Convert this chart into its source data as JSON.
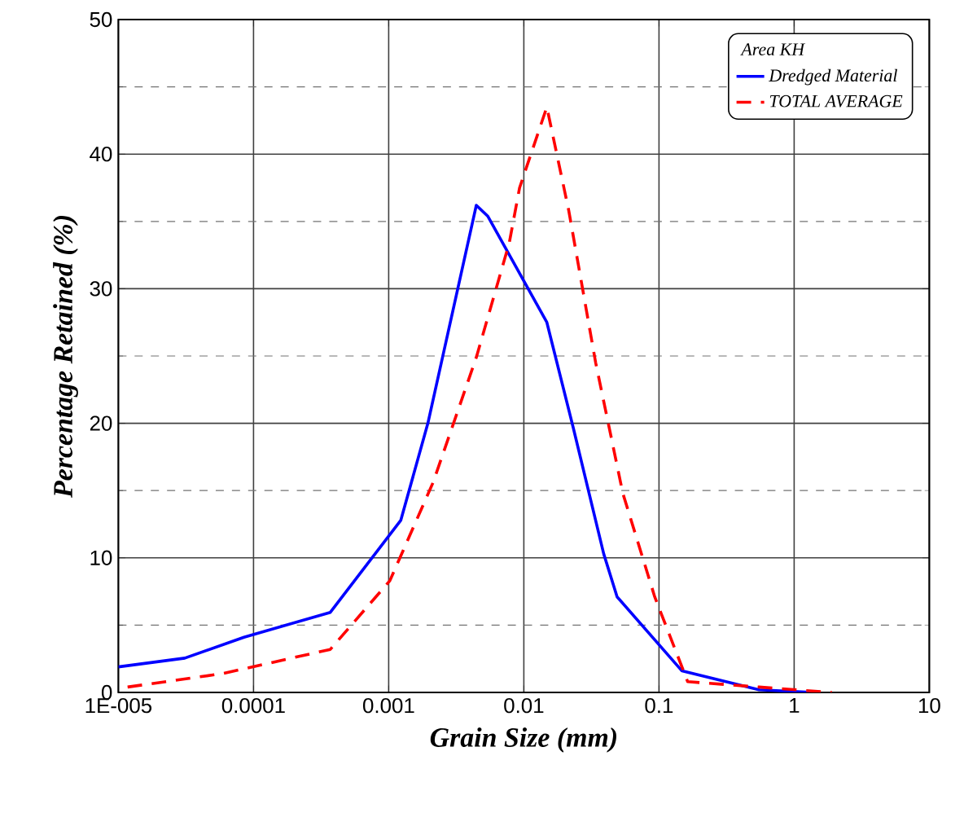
{
  "chart_data": {
    "type": "line",
    "xlabel": "Grain Size (mm)",
    "ylabel": "Percentage Retained (%)",
    "legend_title": "Area KH",
    "log": "x",
    "grid": true,
    "legend": "top right",
    "marker": "none",
    "xlim": [
      1e-05,
      10
    ],
    "ylim": [
      0,
      50
    ],
    "xticks": [
      {
        "value": 1e-05,
        "label": "1E-005"
      },
      {
        "value": 0.0001,
        "label": "0.0001"
      },
      {
        "value": 0.001,
        "label": "0.001"
      },
      {
        "value": 0.01,
        "label": "0.01"
      },
      {
        "value": 0.1,
        "label": "0.1"
      },
      {
        "value": 1,
        "label": "1"
      },
      {
        "value": 10,
        "label": "10"
      }
    ],
    "yticks": [
      0,
      10,
      20,
      30,
      40,
      50
    ],
    "series": [
      {
        "name": "Dredged Material",
        "color": "#0000ff",
        "line_style": "solid",
        "x": [
          1e-05,
          3.1e-05,
          8.5e-05,
          0.00037,
          0.00123,
          0.00195,
          0.00445,
          0.0054,
          0.0148,
          0.0233,
          0.039,
          0.049,
          0.148,
          0.55,
          1.4
        ],
        "values": [
          1.9,
          2.55,
          4.1,
          5.95,
          12.8,
          20,
          36.2,
          35.4,
          27.5,
          19.6,
          10.3,
          7.1,
          1.6,
          0.2,
          0
        ]
      },
      {
        "name": "TOTAL AVERAGE",
        "color": "#ff0000",
        "line_style": "dashed",
        "x": [
          1.17e-05,
          5.9e-05,
          0.00037,
          0.00102,
          0.00213,
          0.00445,
          0.0078,
          0.0093,
          0.0148,
          0.0215,
          0.034,
          0.054,
          0.093,
          0.163,
          0.55,
          1.9
        ],
        "values": [
          0.4,
          1.4,
          3.2,
          8.3,
          15.6,
          24.9,
          33.4,
          37.5,
          43.5,
          35.8,
          24.5,
          14.8,
          7.1,
          0.8,
          0.4,
          0
        ]
      }
    ]
  }
}
